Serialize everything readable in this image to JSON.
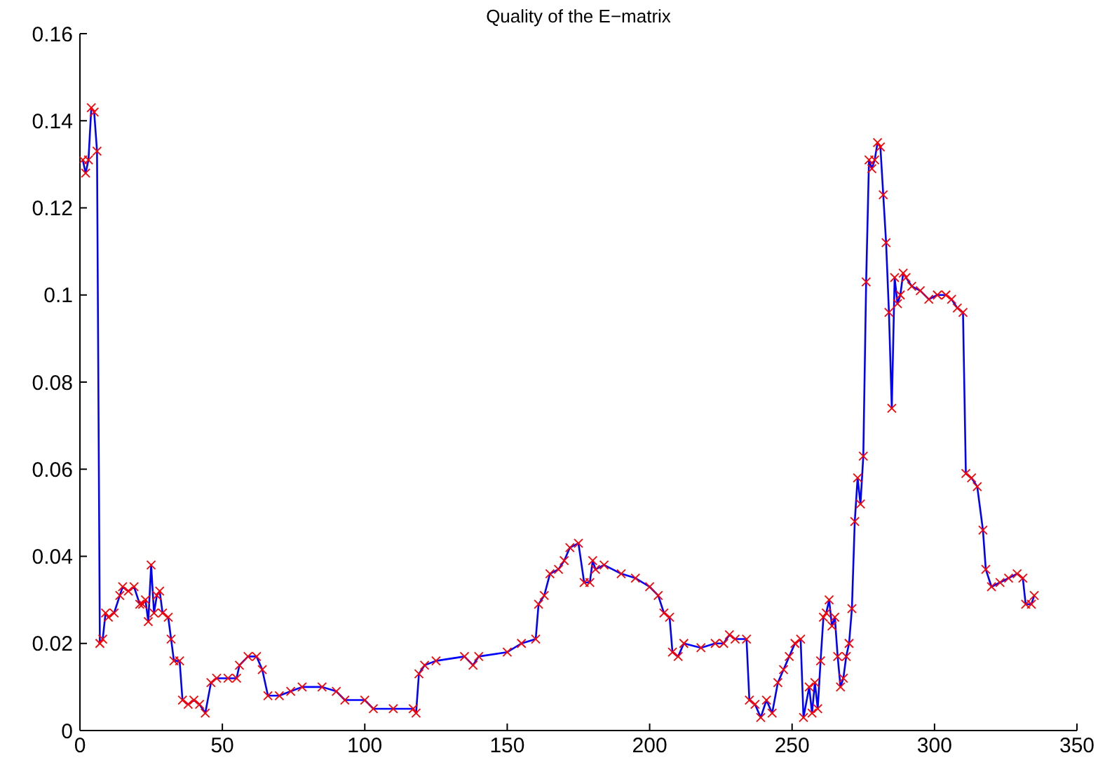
{
  "chart_data": {
    "type": "line",
    "title": "Quality of the E−matrix",
    "x": [
      1,
      2,
      3,
      4,
      5,
      6,
      7,
      8,
      9,
      10,
      12,
      14,
      15,
      17,
      19,
      21,
      22,
      23,
      24,
      25,
      26,
      27,
      28,
      29,
      31,
      32,
      33,
      35,
      36,
      38,
      40,
      42,
      44,
      46,
      48,
      52,
      55,
      56,
      59,
      62,
      64,
      66,
      70,
      74,
      78,
      85,
      90,
      93,
      100,
      103,
      110,
      117,
      118,
      119,
      121,
      125,
      135,
      138,
      140,
      150,
      155,
      160,
      161,
      163,
      165,
      168,
      170,
      172,
      175,
      177,
      179,
      180,
      181,
      184,
      190,
      195,
      200,
      203,
      205,
      207,
      208,
      210,
      212,
      218,
      223,
      226,
      228,
      230,
      234,
      235,
      237,
      239,
      241,
      243,
      245,
      247,
      249,
      251,
      253,
      254,
      256,
      257,
      258,
      259,
      260,
      261,
      262,
      263,
      264,
      265,
      266,
      267,
      268,
      269,
      270,
      271,
      272,
      273,
      274,
      275,
      276,
      277,
      278,
      279,
      280,
      281,
      282,
      283,
      284,
      285,
      286,
      287,
      288,
      289,
      290,
      292,
      295,
      298,
      301,
      304,
      306,
      308,
      310,
      311,
      313,
      315,
      317,
      318,
      320,
      323,
      326,
      329,
      331,
      332,
      334,
      335
    ],
    "series": [
      {
        "type": "line",
        "color": "#0000ff",
        "marker": "none",
        "values": [
          0.131,
          0.128,
          0.131,
          0.143,
          0.142,
          0.133,
          0.02,
          0.021,
          0.027,
          0.026,
          0.027,
          0.031,
          0.033,
          0.032,
          0.033,
          0.029,
          0.029,
          0.03,
          0.025,
          0.038,
          0.027,
          0.031,
          0.032,
          0.027,
          0.026,
          0.021,
          0.016,
          0.016,
          0.007,
          0.006,
          0.007,
          0.006,
          0.004,
          0.011,
          0.012,
          0.012,
          0.012,
          0.015,
          0.017,
          0.017,
          0.014,
          0.008,
          0.008,
          0.009,
          0.01,
          0.01,
          0.009,
          0.007,
          0.007,
          0.005,
          0.005,
          0.005,
          0.004,
          0.013,
          0.015,
          0.016,
          0.017,
          0.015,
          0.017,
          0.018,
          0.02,
          0.021,
          0.029,
          0.031,
          0.036,
          0.037,
          0.039,
          0.042,
          0.043,
          0.034,
          0.034,
          0.039,
          0.037,
          0.038,
          0.036,
          0.035,
          0.033,
          0.031,
          0.027,
          0.026,
          0.018,
          0.017,
          0.02,
          0.019,
          0.02,
          0.02,
          0.022,
          0.021,
          0.021,
          0.007,
          0.006,
          0.003,
          0.007,
          0.004,
          0.011,
          0.014,
          0.017,
          0.02,
          0.021,
          0.003,
          0.01,
          0.004,
          0.011,
          0.005,
          0.016,
          0.026,
          0.027,
          0.03,
          0.024,
          0.026,
          0.017,
          0.01,
          0.012,
          0.017,
          0.02,
          0.028,
          0.048,
          0.058,
          0.052,
          0.063,
          0.103,
          0.131,
          0.129,
          0.131,
          0.135,
          0.134,
          0.123,
          0.112,
          0.096,
          0.074,
          0.104,
          0.098,
          0.1,
          0.105,
          0.104,
          0.102,
          0.101,
          0.099,
          0.1,
          0.1,
          0.099,
          0.097,
          0.096,
          0.059,
          0.058,
          0.056,
          0.046,
          0.037,
          0.033,
          0.034,
          0.035,
          0.036,
          0.035,
          0.029,
          0.029,
          0.031
        ]
      },
      {
        "type": "scatter",
        "color": "#ff0000",
        "marker": "cross",
        "values": [
          0.131,
          0.128,
          0.131,
          0.143,
          0.142,
          0.133,
          0.02,
          0.021,
          0.027,
          0.026,
          0.027,
          0.031,
          0.033,
          0.032,
          0.033,
          0.029,
          0.029,
          0.03,
          0.025,
          0.038,
          0.027,
          0.031,
          0.032,
          0.027,
          0.026,
          0.021,
          0.016,
          0.016,
          0.007,
          0.006,
          0.007,
          0.006,
          0.004,
          0.011,
          0.012,
          0.012,
          0.012,
          0.015,
          0.017,
          0.017,
          0.014,
          0.008,
          0.008,
          0.009,
          0.01,
          0.01,
          0.009,
          0.007,
          0.007,
          0.005,
          0.005,
          0.005,
          0.004,
          0.013,
          0.015,
          0.016,
          0.017,
          0.015,
          0.017,
          0.018,
          0.02,
          0.021,
          0.029,
          0.031,
          0.036,
          0.037,
          0.039,
          0.042,
          0.043,
          0.034,
          0.034,
          0.039,
          0.037,
          0.038,
          0.036,
          0.035,
          0.033,
          0.031,
          0.027,
          0.026,
          0.018,
          0.017,
          0.02,
          0.019,
          0.02,
          0.02,
          0.022,
          0.021,
          0.021,
          0.007,
          0.006,
          0.003,
          0.007,
          0.004,
          0.011,
          0.014,
          0.017,
          0.02,
          0.021,
          0.003,
          0.01,
          0.004,
          0.011,
          0.005,
          0.016,
          0.026,
          0.027,
          0.03,
          0.024,
          0.026,
          0.017,
          0.01,
          0.012,
          0.017,
          0.02,
          0.028,
          0.048,
          0.058,
          0.052,
          0.063,
          0.103,
          0.131,
          0.129,
          0.131,
          0.135,
          0.134,
          0.123,
          0.112,
          0.096,
          0.074,
          0.104,
          0.098,
          0.1,
          0.105,
          0.104,
          0.102,
          0.101,
          0.099,
          0.1,
          0.1,
          0.099,
          0.097,
          0.096,
          0.059,
          0.058,
          0.056,
          0.046,
          0.037,
          0.033,
          0.034,
          0.035,
          0.036,
          0.035,
          0.029,
          0.029,
          0.031
        ]
      }
    ],
    "xlim": [
      0,
      350
    ],
    "xticks": [
      0,
      50,
      100,
      150,
      200,
      250,
      300,
      350
    ],
    "ylim": [
      0,
      0.16
    ],
    "yticks": [
      0,
      0.02,
      0.04,
      0.06,
      0.08,
      0.1,
      0.12,
      0.14,
      0.16
    ],
    "grid": false,
    "legend": false
  }
}
